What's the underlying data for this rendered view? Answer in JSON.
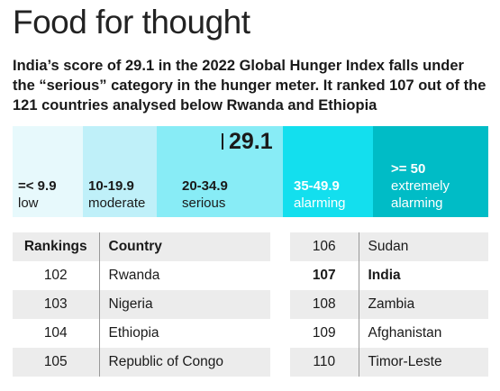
{
  "title": "Food for thought",
  "subtitle": "India’s score of 29.1 in the 2022 Global Hunger Index falls under the “serious” category in the hunger meter. It ranked 107 out of the 121 countries analysed below Rwanda and Ethiopia",
  "chart_data": {
    "type": "table",
    "meter": {
      "marker_value": "29.1",
      "segments": [
        {
          "range": "=< 9.9",
          "name": "low",
          "color": "#e7f9fc",
          "text_color": "#1a1a1a"
        },
        {
          "range": "10-19.9",
          "name": "moderate",
          "color": "#bff0f9",
          "text_color": "#1a1a1a"
        },
        {
          "range": "20-34.9",
          "name": "serious",
          "color": "#88ecf6",
          "text_color": "#1a1a1a"
        },
        {
          "range": "35-49.9",
          "name": "alarming",
          "color": "#13dfee",
          "text_color": "#ffffff"
        },
        {
          "range": ">= 50",
          "name": "extremely alarming",
          "color": "#00bcc6",
          "text_color": "#ffffff"
        }
      ]
    },
    "table_left": {
      "headers": [
        "Rankings",
        "Country"
      ],
      "rows": [
        [
          "102",
          "Rwanda"
        ],
        [
          "103",
          "Nigeria"
        ],
        [
          "104",
          "Ethiopia"
        ],
        [
          "105",
          "Republic of Congo"
        ]
      ]
    },
    "table_right": {
      "rows": [
        [
          "106",
          "Sudan"
        ],
        [
          "107",
          "India"
        ],
        [
          "108",
          "Zambia"
        ],
        [
          "109",
          "Afghanistan"
        ],
        [
          "110",
          "Timor-Leste"
        ]
      ],
      "highlight_row": "107"
    }
  }
}
